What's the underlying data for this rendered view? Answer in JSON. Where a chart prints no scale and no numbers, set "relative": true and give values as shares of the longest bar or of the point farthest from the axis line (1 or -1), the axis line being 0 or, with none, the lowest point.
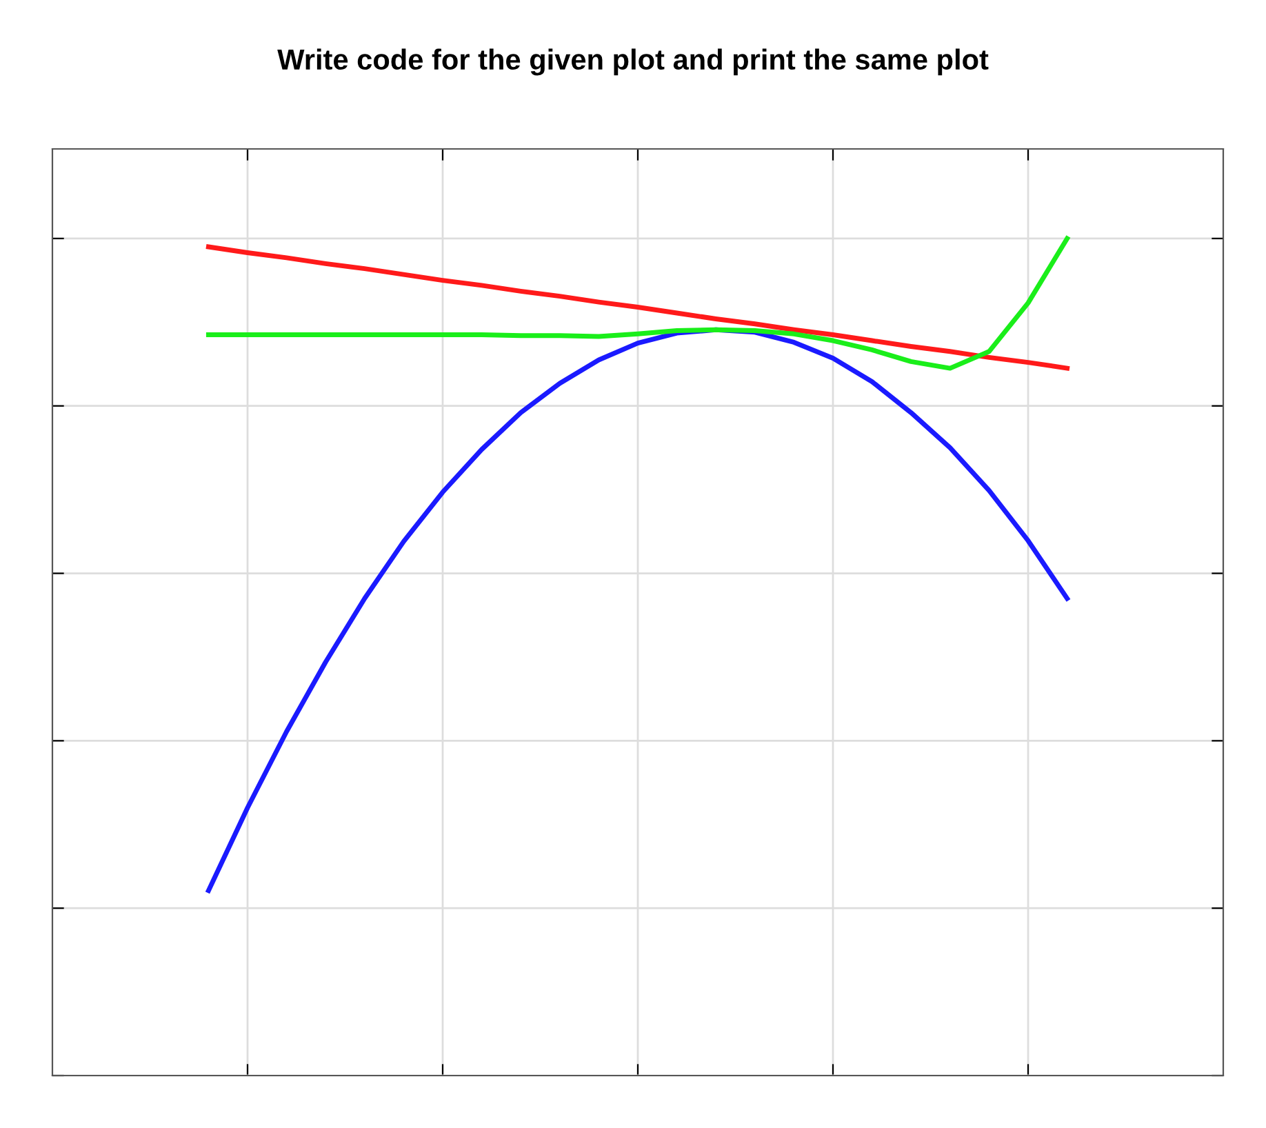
{
  "chart_data": {
    "type": "line",
    "title": "Write code for the given plot and print the same plot",
    "relative": true,
    "grid": true,
    "categories": [
      null,
      null,
      null,
      null,
      null,
      null,
      null,
      null,
      null,
      null,
      null,
      null,
      null,
      null,
      null,
      null,
      null,
      null,
      null,
      null,
      null,
      null,
      null
    ],
    "series": [
      {
        "color": "#1a1aff",
        "values": [
          0.221,
          0.32,
          0.411,
          0.494,
          0.57,
          0.638,
          0.697,
          0.748,
          0.792,
          0.827,
          0.855,
          0.875,
          0.887,
          0.891,
          0.888,
          0.876,
          0.857,
          0.829,
          0.792,
          0.75,
          0.699,
          0.639,
          0.57
        ]
      },
      {
        "color": "#ff1a1a",
        "values": [
          0.99,
          0.983,
          0.977,
          0.97,
          0.964,
          0.957,
          0.95,
          0.944,
          0.937,
          0.931,
          0.924,
          0.918,
          0.911,
          0.904,
          0.898,
          0.891,
          0.885,
          0.878,
          0.871,
          0.865,
          0.858,
          0.852,
          0.845
        ]
      },
      {
        "color": "#1aee1a",
        "values": [
          0.885,
          0.885,
          0.885,
          0.885,
          0.885,
          0.885,
          0.885,
          0.885,
          0.884,
          0.884,
          0.883,
          0.886,
          0.89,
          0.891,
          0.89,
          0.886,
          0.878,
          0.867,
          0.853,
          0.845,
          0.865,
          0.923,
          1.0
        ]
      }
    ]
  }
}
